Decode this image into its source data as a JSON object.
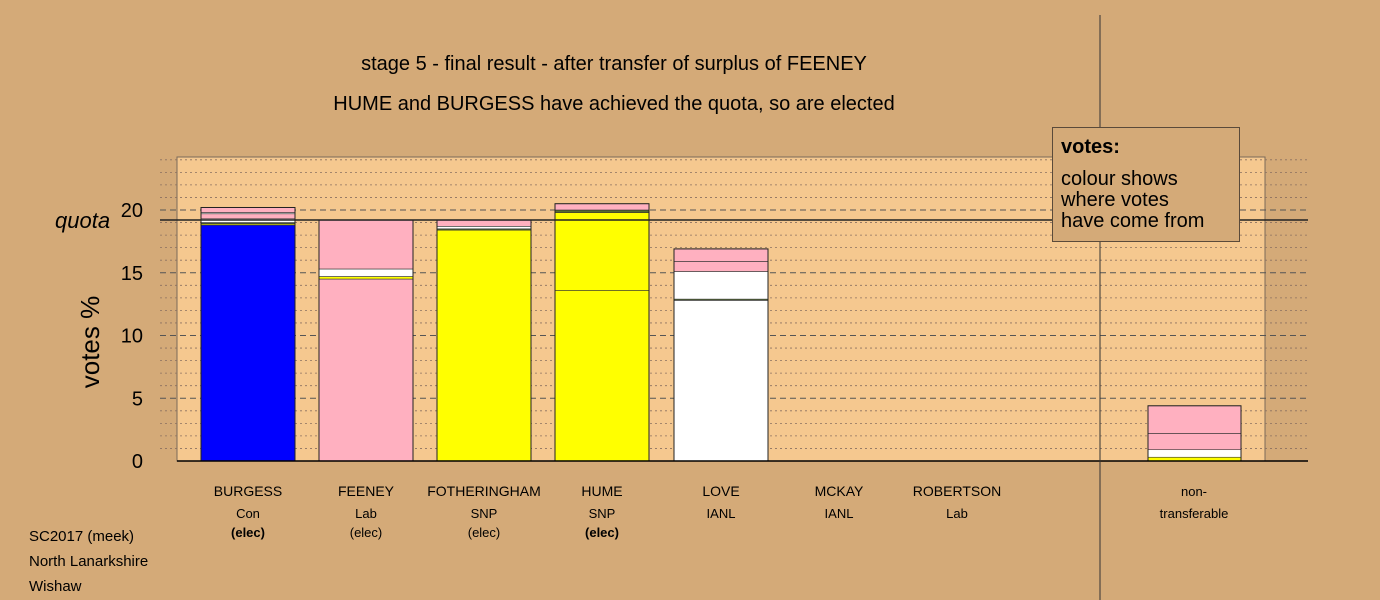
{
  "header": {
    "title_line1": "stage 5 - final result - after transfer of surplus of FEENEY",
    "title_line2": "HUME and BURGESS have achieved the quota, so are elected"
  },
  "legend": {
    "heading": "votes:",
    "lines": [
      "colour shows",
      "where votes",
      "have come from"
    ]
  },
  "footer": {
    "line1": "SC2017 (meek)",
    "line2": "North Lanarkshire",
    "line3": "Wishaw"
  },
  "chart_data": {
    "type": "bar",
    "stacked": true,
    "ylabel": "votes %",
    "ylim": [
      0,
      24
    ],
    "yticks": [
      0,
      5,
      10,
      15,
      20
    ],
    "quota": 19.2,
    "quota_label": "quota",
    "colors": {
      "Con": "#0000ff",
      "Lab": "#ffb0c0",
      "SNP": "#ffff00",
      "IANL": "#ffffff",
      "IANL2": "#556b2f",
      "background": "#d4aa78",
      "plot_area": "#f5c88f"
    },
    "candidates": [
      {
        "name": "BURGESS",
        "party": "Con",
        "status": "(elec)",
        "bold": true,
        "segments": [
          {
            "source": "Con",
            "value": 18.8
          },
          {
            "source": "SNP",
            "value": 0.1
          },
          {
            "source": "IANL2",
            "value": 0.1
          },
          {
            "source": "IANL",
            "value": 0.3
          },
          {
            "source": "Lab",
            "value": 0.4
          },
          {
            "source": "IANL",
            "value": 0.1
          },
          {
            "source": "Lab",
            "value": 0.4
          }
        ]
      },
      {
        "name": "FEENEY",
        "party": "Lab",
        "status": "(elec)",
        "bold": false,
        "segments": [
          {
            "source": "Lab",
            "value": 14.5
          },
          {
            "source": "SNP",
            "value": 0.2
          },
          {
            "source": "IANL",
            "value": 0.6
          },
          {
            "source": "Lab",
            "value": 3.9
          }
        ]
      },
      {
        "name": "FOTHERINGHAM",
        "party": "SNP",
        "status": "(elec)",
        "bold": false,
        "segments": [
          {
            "source": "SNP",
            "value": 18.4
          },
          {
            "source": "IANL2",
            "value": 0.1
          },
          {
            "source": "IANL",
            "value": 0.2
          },
          {
            "source": "Lab",
            "value": 0.5
          }
        ]
      },
      {
        "name": "HUME",
        "party": "SNP",
        "status": "(elec)",
        "bold": true,
        "segments": [
          {
            "source": "SNP",
            "value": 13.6
          },
          {
            "source": "SNP",
            "value": 6.2
          },
          {
            "source": "IANL2",
            "value": 0.2
          },
          {
            "source": "Lab",
            "value": 0.5
          }
        ]
      },
      {
        "name": "LOVE",
        "party": "IANL",
        "status": "",
        "bold": false,
        "segments": [
          {
            "source": "IANL",
            "value": 12.8
          },
          {
            "source": "IANL2",
            "value": 0.1
          },
          {
            "source": "IANL",
            "value": 2.2
          },
          {
            "source": "Lab",
            "value": 0.8
          },
          {
            "source": "Lab",
            "value": 1.0
          }
        ]
      },
      {
        "name": "MCKAY",
        "party": "IANL",
        "status": "",
        "bold": false,
        "segments": []
      },
      {
        "name": "ROBERTSON",
        "party": "Lab",
        "status": "",
        "bold": false,
        "segments": []
      }
    ],
    "nontransferable": {
      "label_line1": "non-",
      "label_line2": "transferable",
      "segments": [
        {
          "source": "SNP",
          "value": 0.3
        },
        {
          "source": "IANL",
          "value": 0.6
        },
        {
          "source": "Lab",
          "value": 1.3
        },
        {
          "source": "Lab",
          "value": 2.2
        }
      ]
    }
  }
}
